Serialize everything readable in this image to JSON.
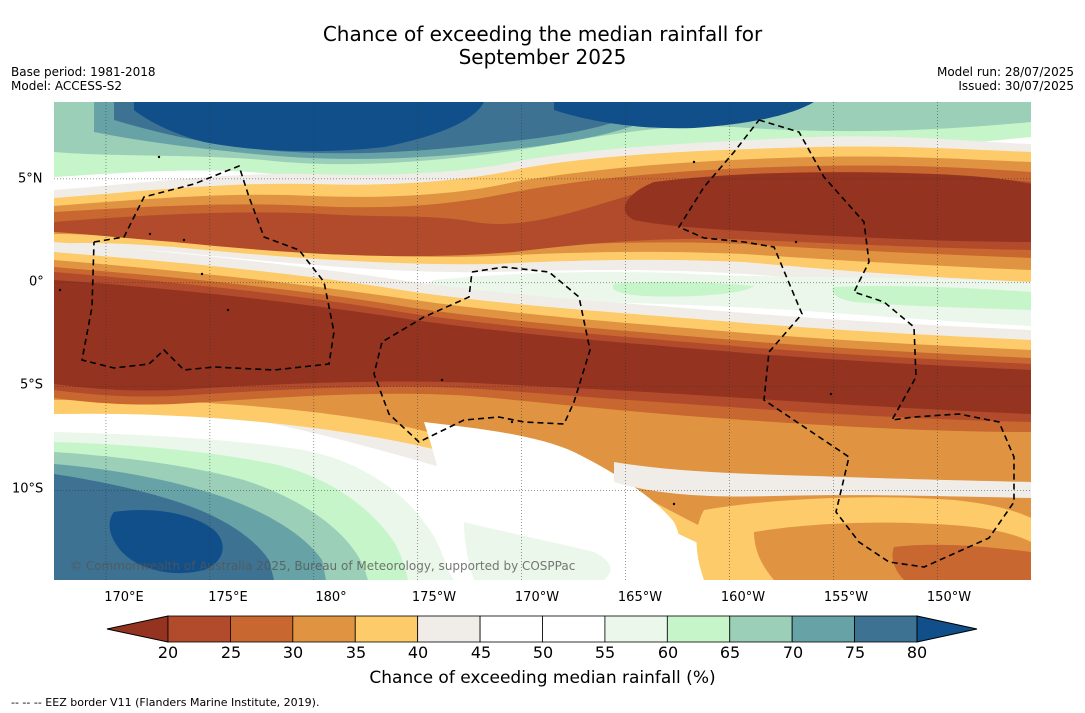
{
  "title": {
    "line1": "Chance of exceeding the median rainfall for",
    "line2": "September 2025"
  },
  "meta": {
    "base_period": "Base period: 1981-2018",
    "model": "Model: ACCESS-S2",
    "model_run": "Model run: 28/07/2025",
    "issued": "Issued: 30/07/2025"
  },
  "map": {
    "copyright": "© Commonwealth of Australia 2025, Bureau of Meteorology, supported by COSPPac",
    "lon_labels": [
      "170°E",
      "175°E",
      "180°",
      "175°W",
      "170°W",
      "165°W",
      "160°W",
      "155°W",
      "150°W"
    ],
    "lat_labels": [
      "5°N",
      "0°",
      "5°S",
      "10°S"
    ],
    "lon_range": [
      167.5,
      214.5
    ],
    "lat_range": [
      -14.3,
      8.7
    ],
    "gridlines": true,
    "colors": {
      "bands": [
        "#953321",
        "#b14b2c",
        "#c8672f",
        "#e09442",
        "#fdcb69",
        "#f0ede9",
        "#ffffff",
        "#ffffff",
        "#eaf7ea",
        "#c6f5c9",
        "#9bcfb7",
        "#67a3a6",
        "#3d7293",
        "#104f8a"
      ]
    }
  },
  "colorbar": {
    "ticks": [
      "20",
      "25",
      "30",
      "35",
      "40",
      "45",
      "50",
      "55",
      "60",
      "65",
      "70",
      "75",
      "80"
    ],
    "label": "Chance of exceeding median rainfall (%)"
  },
  "footnote": "--  --  -- EEZ border V11 (Flanders Marine Institute, 2019)."
}
